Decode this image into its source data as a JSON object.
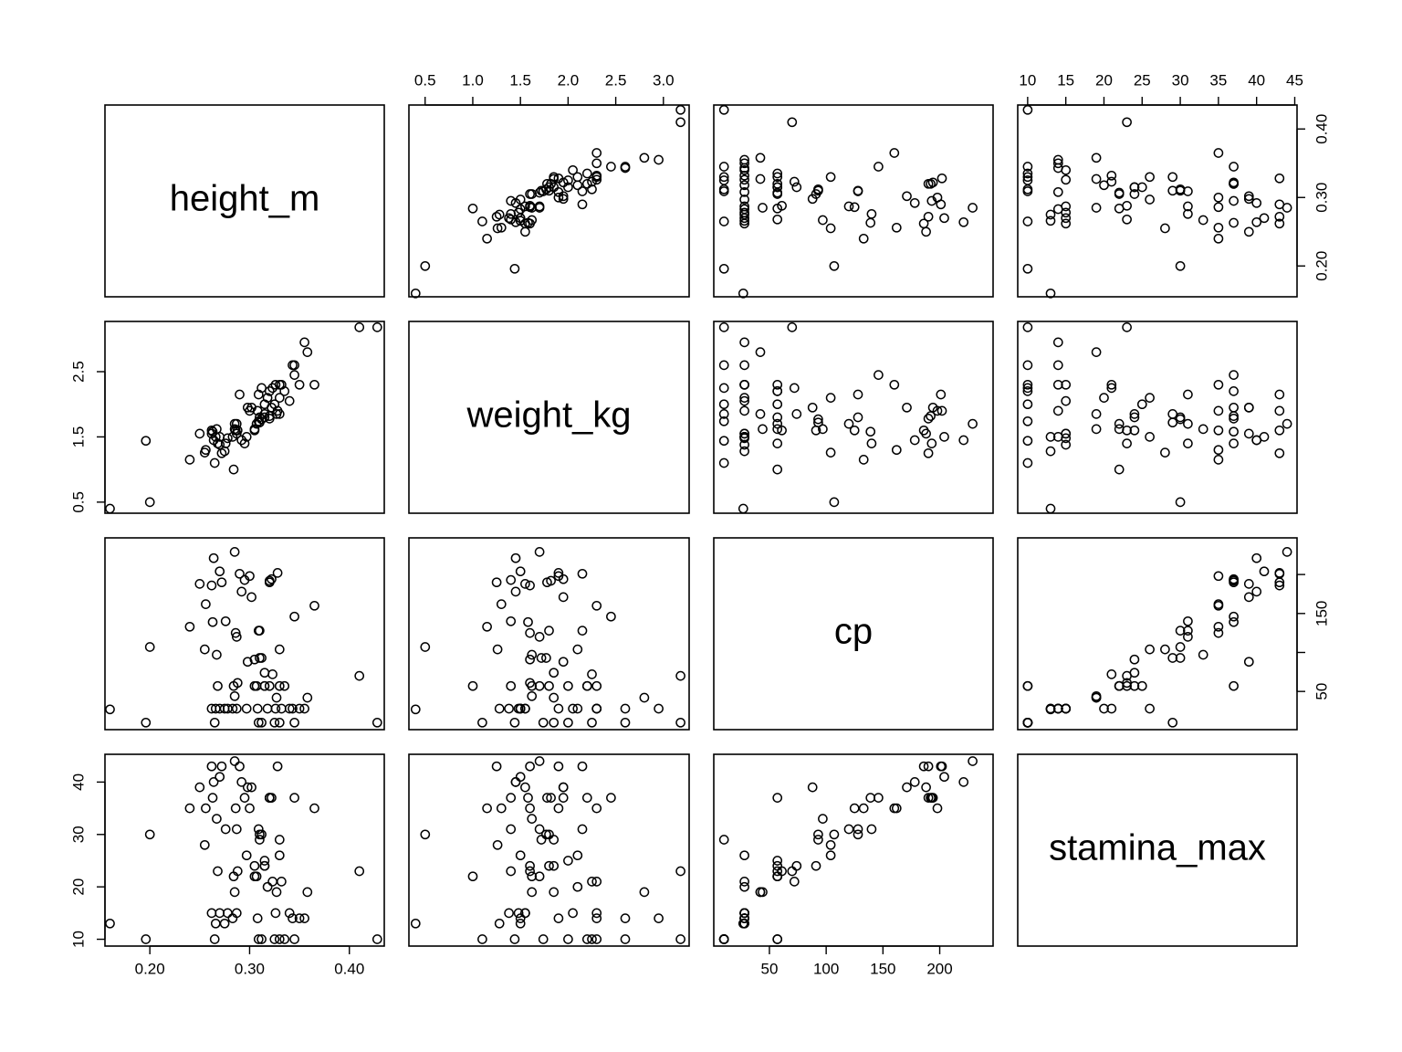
{
  "chart_data": {
    "type": "scatter",
    "title": "",
    "variables": [
      "height_m",
      "weight_kg",
      "cp",
      "stamina_max"
    ],
    "axes": {
      "height_m": {
        "range": [
          0.155,
          0.435
        ],
        "ticks": [
          0.2,
          0.3,
          0.4
        ],
        "tick_labels": [
          "0.20",
          "0.30",
          "0.40"
        ]
      },
      "weight_kg": {
        "range": [
          0.33,
          3.27
        ],
        "ticks": [
          0.5,
          1.0,
          1.5,
          2.0,
          2.5,
          3.0
        ],
        "tick_labels": [
          "0.5",
          "1.0",
          "1.5",
          "2.0",
          "2.5",
          "3.0"
        ],
        "left_ticks": [
          0.5,
          1.5,
          2.5
        ],
        "left_tick_labels": [
          "0.5",
          "1.5",
          "2.5"
        ]
      },
      "cp": {
        "range": [
          1,
          247
        ],
        "ticks": [
          50,
          100,
          150,
          200
        ],
        "tick_labels": [
          "50",
          "100",
          "150",
          "200"
        ],
        "right_ticks": [
          50,
          100,
          150,
          200
        ],
        "right_tick_labels": [
          "50",
          "",
          "150",
          ""
        ]
      },
      "stamina_max": {
        "range": [
          8.7,
          45.3
        ],
        "ticks": [
          10,
          15,
          20,
          25,
          30,
          35,
          40,
          45
        ],
        "tick_labels": [
          "10",
          "15",
          "20",
          "25",
          "30",
          "35",
          "40",
          "45"
        ],
        "left_ticks": [
          10,
          20,
          30,
          40
        ],
        "left_tick_labels": [
          "10",
          "20",
          "30",
          "40"
        ]
      }
    },
    "points": [
      [
        0.16,
        0.4,
        27,
        13
      ],
      [
        0.196,
        1.44,
        10,
        10
      ],
      [
        0.2,
        0.5,
        107,
        30
      ],
      [
        0.24,
        1.15,
        133,
        35
      ],
      [
        0.25,
        1.55,
        188,
        39
      ],
      [
        0.255,
        1.26,
        104,
        28
      ],
      [
        0.256,
        1.3,
        162,
        35
      ],
      [
        0.262,
        1.55,
        28,
        15
      ],
      [
        0.262,
        1.6,
        186,
        43
      ],
      [
        0.263,
        1.58,
        139,
        37
      ],
      [
        0.264,
        1.45,
        221,
        40
      ],
      [
        0.265,
        1.1,
        10,
        10
      ],
      [
        0.266,
        1.5,
        28,
        13
      ],
      [
        0.267,
        1.62,
        97,
        33
      ],
      [
        0.268,
        1.4,
        57,
        23
      ],
      [
        0.27,
        1.5,
        204,
        41
      ],
      [
        0.27,
        1.38,
        28,
        15
      ],
      [
        0.272,
        1.25,
        190,
        43
      ],
      [
        0.275,
        1.28,
        28,
        13
      ],
      [
        0.276,
        1.4,
        140,
        31
      ],
      [
        0.278,
        1.48,
        28,
        15
      ],
      [
        0.283,
        1.5,
        28,
        14
      ],
      [
        0.284,
        1.0,
        57,
        22
      ],
      [
        0.285,
        1.62,
        44,
        19
      ],
      [
        0.285,
        1.7,
        229,
        44
      ],
      [
        0.286,
        1.6,
        125,
        35
      ],
      [
        0.287,
        1.55,
        28,
        15
      ],
      [
        0.287,
        1.7,
        120,
        31
      ],
      [
        0.288,
        1.6,
        61,
        23
      ],
      [
        0.29,
        2.15,
        201,
        43
      ],
      [
        0.292,
        1.45,
        178,
        40
      ],
      [
        0.295,
        1.4,
        193,
        37
      ],
      [
        0.297,
        1.5,
        28,
        26
      ],
      [
        0.298,
        1.95,
        88,
        39
      ],
      [
        0.3,
        1.9,
        198,
        35
      ],
      [
        0.302,
        1.95,
        171,
        39
      ],
      [
        0.305,
        1.6,
        91,
        24
      ],
      [
        0.305,
        1.62,
        57,
        22
      ],
      [
        0.307,
        1.7,
        57,
        22
      ],
      [
        0.308,
        1.9,
        28,
        14
      ],
      [
        0.309,
        1.74,
        10,
        10
      ],
      [
        0.309,
        2.15,
        128,
        31
      ],
      [
        0.31,
        1.72,
        93,
        29
      ],
      [
        0.31,
        1.8,
        128,
        30
      ],
      [
        0.312,
        1.77,
        93,
        30
      ],
      [
        0.312,
        2.25,
        10,
        10
      ],
      [
        0.315,
        1.8,
        57,
        24
      ],
      [
        0.315,
        2.0,
        57,
        25
      ],
      [
        0.315,
        1.85,
        74,
        24
      ],
      [
        0.318,
        2.1,
        28,
        20
      ],
      [
        0.32,
        1.78,
        190,
        37
      ],
      [
        0.32,
        2.2,
        57,
        37
      ],
      [
        0.32,
        1.82,
        192,
        37
      ],
      [
        0.322,
        1.95,
        194,
        37
      ],
      [
        0.323,
        2.25,
        72,
        21
      ],
      [
        0.325,
        2.0,
        10,
        10
      ],
      [
        0.326,
        2.3,
        28,
        15
      ],
      [
        0.327,
        1.85,
        42,
        19
      ],
      [
        0.328,
        1.9,
        202,
        43
      ],
      [
        0.33,
        2.3,
        57,
        10
      ],
      [
        0.33,
        1.85,
        10,
        29
      ],
      [
        0.33,
        2.1,
        104,
        26
      ],
      [
        0.332,
        2.3,
        28,
        21
      ],
      [
        0.335,
        2.2,
        57,
        10
      ],
      [
        0.34,
        2.05,
        28,
        15
      ],
      [
        0.343,
        2.6,
        28,
        14
      ],
      [
        0.345,
        2.45,
        146,
        37
      ],
      [
        0.345,
        2.6,
        10,
        10
      ],
      [
        0.35,
        2.3,
        28,
        14
      ],
      [
        0.355,
        2.95,
        28,
        14
      ],
      [
        0.358,
        2.8,
        42,
        19
      ],
      [
        0.365,
        2.3,
        160,
        35
      ],
      [
        0.41,
        3.18,
        70,
        23
      ],
      [
        0.428,
        3.18,
        10,
        10
      ]
    ]
  },
  "labels": {
    "height_m": "height_m",
    "weight_kg": "weight_kg",
    "cp": "cp",
    "stamina_max": "stamina_max"
  }
}
